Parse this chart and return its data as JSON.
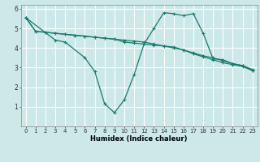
{
  "xlabel": "Humidex (Indice chaleur)",
  "bg_color": "#cce8e8",
  "grid_color": "#ffffff",
  "line_color": "#1a7a6e",
  "xlim": [
    -0.5,
    23.5
  ],
  "ylim": [
    0,
    6.2
  ],
  "xticks": [
    0,
    1,
    2,
    3,
    4,
    5,
    6,
    7,
    8,
    9,
    10,
    11,
    12,
    13,
    14,
    15,
    16,
    17,
    18,
    19,
    20,
    21,
    22,
    23
  ],
  "yticks": [
    1,
    2,
    3,
    4,
    5,
    6
  ],
  "line1_x": [
    0,
    1,
    2,
    3,
    4,
    5,
    6,
    7,
    8,
    9,
    10,
    11,
    12,
    13,
    14,
    15,
    16,
    17,
    18,
    19,
    20,
    21,
    22,
    23
  ],
  "line1_y": [
    5.55,
    4.85,
    4.8,
    4.75,
    4.7,
    4.65,
    4.6,
    4.55,
    4.5,
    4.45,
    4.4,
    4.35,
    4.3,
    4.2,
    4.1,
    4.0,
    3.9,
    3.75,
    3.6,
    3.5,
    3.35,
    3.2,
    3.1,
    2.9
  ],
  "line2_x": [
    0,
    1,
    2,
    3,
    4,
    5,
    6,
    7,
    8,
    9,
    10,
    11,
    12,
    13,
    14,
    15,
    16,
    17,
    18,
    19,
    20,
    21,
    22,
    23
  ],
  "line2_y": [
    5.55,
    4.85,
    4.8,
    4.75,
    4.7,
    4.65,
    4.6,
    4.55,
    4.5,
    4.45,
    4.3,
    4.25,
    4.2,
    4.15,
    4.1,
    4.05,
    3.9,
    3.7,
    3.55,
    3.4,
    3.25,
    3.15,
    3.05,
    2.85
  ],
  "line3_x": [
    0,
    3,
    4,
    6,
    7,
    8,
    9,
    10,
    11,
    12,
    13,
    14,
    15,
    16,
    17,
    18,
    19,
    20,
    21,
    22,
    23
  ],
  "line3_y": [
    5.55,
    4.4,
    4.3,
    3.5,
    2.8,
    1.15,
    0.7,
    1.35,
    2.65,
    4.2,
    5.0,
    5.8,
    5.75,
    5.65,
    5.75,
    4.75,
    3.45,
    3.4,
    3.2,
    3.1,
    2.85
  ]
}
